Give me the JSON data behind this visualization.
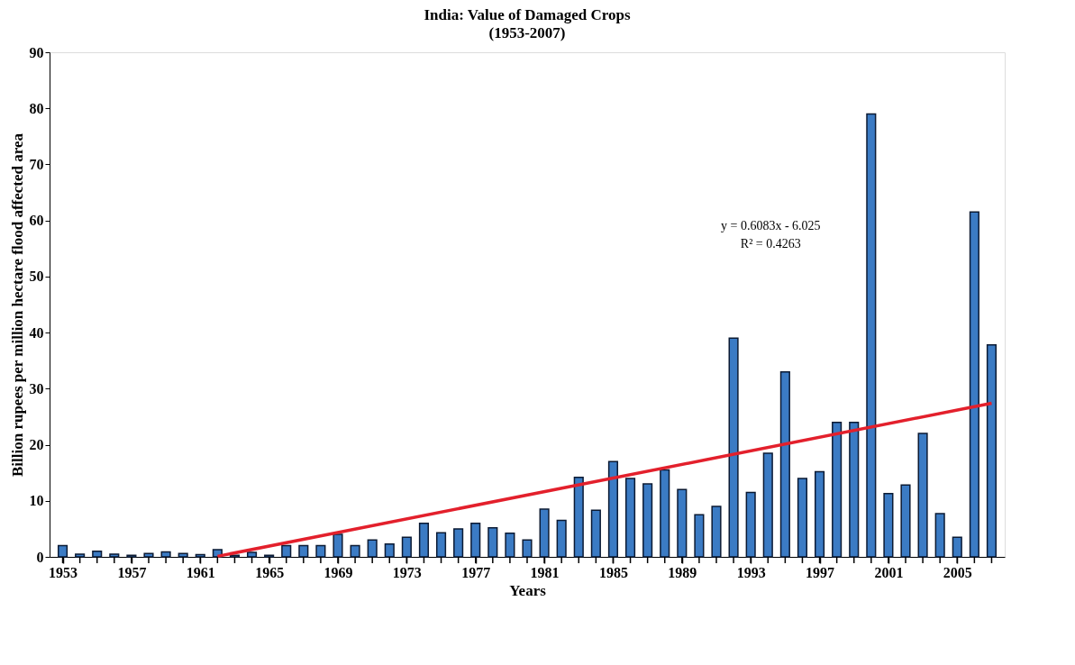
{
  "chart_data": {
    "type": "bar",
    "title": "India: Value of Damaged Crops",
    "subtitle": "(1953-2007)",
    "xlabel": "Years",
    "ylabel": "Billion rupees per million hectare flood affected area",
    "x": [
      1953,
      1954,
      1955,
      1956,
      1957,
      1958,
      1959,
      1960,
      1961,
      1962,
      1963,
      1964,
      1965,
      1966,
      1967,
      1968,
      1969,
      1970,
      1971,
      1972,
      1973,
      1974,
      1975,
      1976,
      1977,
      1978,
      1979,
      1980,
      1981,
      1982,
      1983,
      1984,
      1985,
      1986,
      1987,
      1988,
      1989,
      1990,
      1991,
      1992,
      1993,
      1994,
      1995,
      1996,
      1997,
      1998,
      1999,
      2000,
      2001,
      2002,
      2003,
      2004,
      2005,
      2006,
      2007
    ],
    "series": [
      {
        "color": "#3b7bc4",
        "values": [
          2.0,
          0.5,
          1.0,
          0.5,
          0.3,
          0.6,
          0.9,
          0.6,
          0.4,
          1.3,
          0.3,
          0.8,
          0.3,
          2.0,
          2.0,
          2.0,
          4.0,
          2.0,
          3.0,
          2.3,
          3.5,
          6.0,
          4.3,
          5.0,
          6.0,
          5.2,
          4.2,
          3.0,
          8.5,
          6.5,
          14.2,
          8.3,
          17.0,
          14.0,
          13.0,
          15.5,
          12.0,
          7.5,
          9.0,
          39.0,
          11.5,
          18.5,
          33.0,
          14.0,
          15.2,
          24.0,
          24.0,
          79.0,
          11.3,
          12.8,
          22.0,
          7.7,
          3.5,
          61.5,
          37.8
        ]
      },
      {
        "type": "line",
        "color": "#e3202c",
        "x": [
          1962,
          2007
        ],
        "values": [
          0.1,
          27.4
        ]
      }
    ],
    "xlim": [
      1952.5,
      2007.5
    ],
    "xticks": [
      1953,
      {
        "value": 1954,
        "label": null
      },
      {
        "value": 1955,
        "label": null
      },
      {
        "value": 1956,
        "label": null
      },
      1957,
      {
        "value": 1958,
        "label": null
      },
      {
        "value": 1959,
        "label": null
      },
      {
        "value": 1960,
        "label": null
      },
      1961,
      {
        "value": 1962,
        "label": null
      },
      {
        "value": 1963,
        "label": null
      },
      {
        "value": 1964,
        "label": null
      },
      1965,
      {
        "value": 1966,
        "label": null
      },
      {
        "value": 1967,
        "label": null
      },
      {
        "value": 1968,
        "label": null
      },
      1969,
      {
        "value": 1970,
        "label": null
      },
      {
        "value": 1971,
        "label": null
      },
      {
        "value": 1972,
        "label": null
      },
      1973,
      {
        "value": 1974,
        "label": null
      },
      {
        "value": 1975,
        "label": null
      },
      {
        "value": 1976,
        "label": null
      },
      1977,
      {
        "value": 1978,
        "label": null
      },
      {
        "value": 1979,
        "label": null
      },
      {
        "value": 1980,
        "label": null
      },
      1981,
      {
        "value": 1982,
        "label": null
      },
      {
        "value": 1983,
        "label": null
      },
      {
        "value": 1984,
        "label": null
      },
      1985,
      {
        "value": 1986,
        "label": null
      },
      {
        "value": 1987,
        "label": null
      },
      {
        "value": 1988,
        "label": null
      },
      1989,
      {
        "value": 1990,
        "label": null
      },
      {
        "value": 1991,
        "label": null
      },
      {
        "value": 1992,
        "label": null
      },
      1993,
      {
        "value": 1994,
        "label": null
      },
      {
        "value": 1995,
        "label": null
      },
      {
        "value": 1996,
        "label": null
      },
      1997,
      {
        "value": 1998,
        "label": null
      },
      {
        "value": 1999,
        "label": null
      },
      {
        "value": 2000,
        "label": null
      },
      2001,
      {
        "value": 2002,
        "label": null
      },
      {
        "value": 2003,
        "label": null
      },
      {
        "value": 2004,
        "label": null
      },
      2005,
      {
        "value": 2006,
        "label": null
      },
      {
        "value": 2007,
        "label": null
      }
    ],
    "ylim": [
      0,
      90
    ],
    "yticks": [
      0,
      10,
      20,
      30,
      40,
      50,
      60,
      70,
      80,
      90
    ],
    "grid": false,
    "annotations": [
      "y = 0.6083x - 6.025",
      "R² = 0.4263"
    ]
  }
}
